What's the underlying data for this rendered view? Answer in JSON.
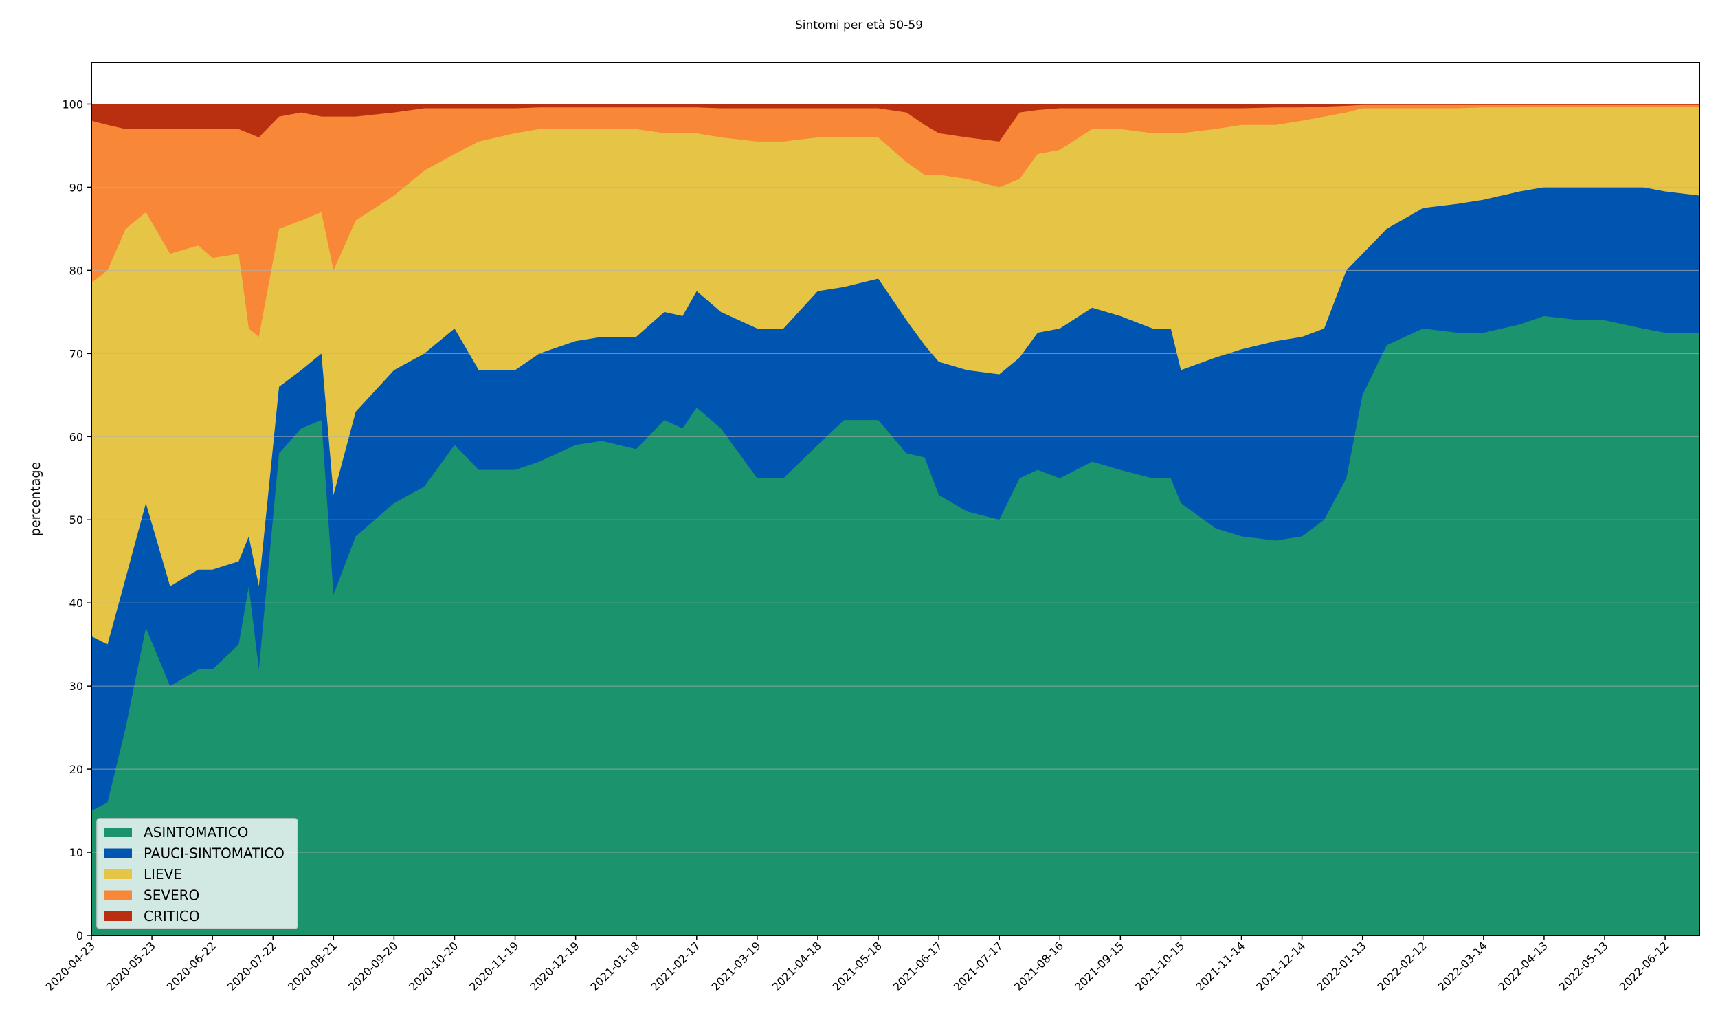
{
  "chart_data": {
    "type": "area",
    "stacked": true,
    "title": "Sintomi per età 50-59",
    "xlabel": "",
    "ylabel": "percentage",
    "ylim": [
      0,
      105
    ],
    "yticks": [
      0,
      10,
      20,
      30,
      40,
      50,
      60,
      70,
      80,
      90,
      100
    ],
    "xrange": [
      "2020-04-23",
      "2022-06-29"
    ],
    "xticks": [
      "2020-04-23",
      "2020-05-23",
      "2020-06-22",
      "2020-07-22",
      "2020-08-21",
      "2020-09-20",
      "2020-10-20",
      "2020-11-19",
      "2020-12-19",
      "2021-01-18",
      "2021-02-17",
      "2021-03-19",
      "2021-04-18",
      "2021-05-18",
      "2021-06-17",
      "2021-07-17",
      "2021-08-16",
      "2021-09-15",
      "2021-10-15",
      "2021-11-14",
      "2021-12-14",
      "2022-01-13",
      "2022-02-12",
      "2022-03-14",
      "2022-04-13",
      "2022-05-13",
      "2022-06-12"
    ],
    "grid": "horizontal",
    "legend_position": "lower-left",
    "series_order_bottom_to_top": [
      "ASINTOMATICO",
      "PAUCI-SINTOMATICO",
      "LIEVE",
      "SEVERO",
      "CRITICO"
    ],
    "colors": {
      "ASINTOMATICO": "#1b936d",
      "PAUCI-SINTOMATICO": "#0055b0",
      "LIEVE": "#e6c546",
      "SEVERO": "#f88737",
      "CRITICO": "#b8300f"
    },
    "cumulative_tops": {
      "dates": [
        "2020-04-23",
        "2020-05-01",
        "2020-05-10",
        "2020-05-20",
        "2020-06-01",
        "2020-06-15",
        "2020-06-22",
        "2020-07-05",
        "2020-07-10",
        "2020-07-15",
        "2020-07-25",
        "2020-08-05",
        "2020-08-15",
        "2020-08-21",
        "2020-09-01",
        "2020-09-20",
        "2020-10-05",
        "2020-10-20",
        "2020-11-01",
        "2020-11-19",
        "2020-12-01",
        "2020-12-19",
        "2021-01-01",
        "2021-01-18",
        "2021-02-01",
        "2021-02-10",
        "2021-02-17",
        "2021-03-01",
        "2021-03-19",
        "2021-04-01",
        "2021-04-18",
        "2021-05-01",
        "2021-05-18",
        "2021-06-01",
        "2021-06-10",
        "2021-06-17",
        "2021-07-01",
        "2021-07-17",
        "2021-07-27",
        "2021-08-05",
        "2021-08-16",
        "2021-09-01",
        "2021-09-15",
        "2021-10-01",
        "2021-10-10",
        "2021-10-15",
        "2021-11-01",
        "2021-11-14",
        "2021-12-01",
        "2021-12-14",
        "2021-12-25",
        "2022-01-05",
        "2022-01-13",
        "2022-01-25",
        "2022-02-12",
        "2022-03-01",
        "2022-03-14",
        "2022-04-01",
        "2022-04-13",
        "2022-05-01",
        "2022-05-13",
        "2022-06-01",
        "2022-06-12",
        "2022-06-29"
      ],
      "ASINTOMATICO": [
        15,
        16,
        25,
        37,
        30,
        32,
        32,
        35,
        42,
        32,
        58,
        61,
        62,
        41,
        48,
        52,
        54,
        59,
        56,
        56,
        57,
        59,
        59.5,
        58.5,
        62,
        61,
        63.5,
        61,
        55,
        55,
        59,
        62,
        62,
        58,
        57.5,
        53,
        51,
        50,
        55,
        56,
        55,
        57,
        56,
        55,
        55,
        52,
        49,
        48,
        47.5,
        48,
        50,
        55,
        65,
        71,
        73,
        72.5,
        72.5,
        73.5,
        74.5,
        74,
        74,
        73,
        72.5,
        72.5
      ],
      "PAUCI-SINTOMATICO": [
        36,
        35,
        43,
        52,
        42,
        44,
        44,
        45,
        48,
        42,
        66,
        68,
        70,
        53,
        63,
        68,
        70,
        73,
        68,
        68,
        70,
        71.5,
        72,
        72,
        75,
        74.5,
        77.5,
        75,
        73,
        73,
        77.5,
        78,
        79,
        74,
        71,
        69,
        68,
        67.5,
        69.5,
        72.5,
        73,
        75.5,
        74.5,
        73,
        73,
        68,
        69.5,
        70.5,
        71.5,
        72,
        73,
        80,
        82,
        85,
        87.5,
        88,
        88.5,
        89.5,
        90,
        90,
        90,
        90,
        89.5,
        89
      ],
      "LIEVE": [
        78.5,
        80,
        85,
        87,
        82,
        83,
        81.5,
        82,
        73,
        72,
        85,
        86,
        87,
        80,
        86,
        89,
        92,
        94,
        95.5,
        96.5,
        97,
        97,
        97,
        97,
        96.5,
        96.5,
        96.5,
        96,
        95.5,
        95.5,
        96,
        96,
        96,
        93,
        91.5,
        91.5,
        91,
        90,
        91,
        94,
        94.5,
        97,
        97,
        96.5,
        96.5,
        96.5,
        97,
        97.5,
        97.5,
        98,
        98.5,
        99,
        99.5,
        99.5,
        99.5,
        99.5,
        99.6,
        99.6,
        99.7,
        99.7,
        99.7,
        99.7,
        99.7,
        99.7
      ],
      "SEVERO": [
        98,
        97.5,
        97,
        97,
        97,
        97,
        97,
        97,
        96.5,
        96,
        98.5,
        99,
        98.5,
        98.5,
        98.5,
        99,
        99.5,
        99.5,
        99.5,
        99.5,
        99.6,
        99.6,
        99.6,
        99.6,
        99.6,
        99.6,
        99.6,
        99.5,
        99.5,
        99.5,
        99.5,
        99.5,
        99.5,
        99,
        97.5,
        96.5,
        96,
        95.5,
        99,
        99.3,
        99.5,
        99.5,
        99.5,
        99.5,
        99.5,
        99.5,
        99.5,
        99.5,
        99.6,
        99.6,
        99.7,
        99.8,
        99.9,
        99.9,
        99.9,
        99.9,
        99.9,
        99.9,
        99.9,
        99.9,
        99.9,
        99.9,
        99.9,
        99.9
      ],
      "CRITICO": [
        100,
        100,
        100,
        100,
        100,
        100,
        100,
        100,
        100,
        100,
        100,
        100,
        100,
        100,
        100,
        100,
        100,
        100,
        100,
        100,
        100,
        100,
        100,
        100,
        100,
        100,
        100,
        100,
        100,
        100,
        100,
        100,
        100,
        100,
        100,
        100,
        100,
        100,
        100,
        100,
        100,
        100,
        100,
        100,
        100,
        100,
        100,
        100,
        100,
        100,
        100,
        100,
        100,
        100,
        100,
        100,
        100,
        100,
        100,
        100,
        100,
        100,
        100,
        100
      ]
    }
  }
}
